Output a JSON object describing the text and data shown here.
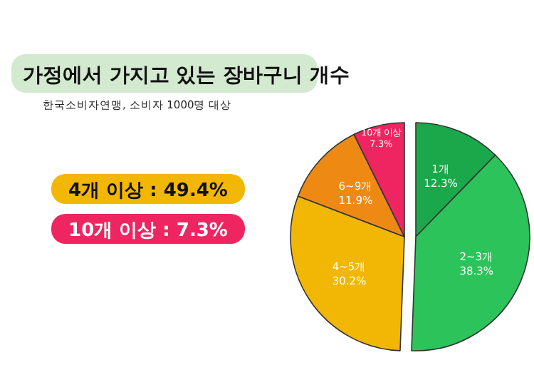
{
  "chart_data": {
    "type": "pie",
    "title": "가정에서 가지고 있는 장바구니 개수",
    "annotations": [
      "한국소비자연맹, 소비자 1000명 대상",
      "4개 이상 : 49.4%",
      "10개 이상 : 7.3%"
    ],
    "categories": [
      "1개",
      "2~3개",
      "4~5개",
      "6~9개",
      "10개 이상"
    ],
    "values": [
      12.3,
      38.3,
      30.2,
      11.9,
      7.3
    ],
    "value_labels": [
      "12.3%",
      "38.3%",
      "30.2%",
      "11.9%",
      "7.3%"
    ],
    "colors": [
      "#1ba84a",
      "#2cc35a",
      "#f2b705",
      "#ee8a14",
      "#ef2561"
    ]
  }
}
